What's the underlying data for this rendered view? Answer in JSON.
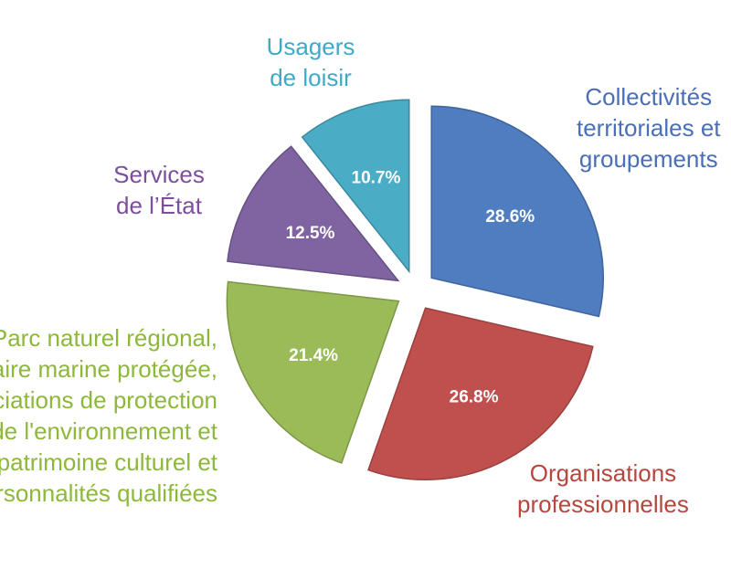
{
  "chart_data": {
    "type": "pie",
    "slices": [
      {
        "label": [
          "Collectivités",
          "territoriales et",
          "groupements"
        ],
        "value": 28.6,
        "value_label": "28.6%",
        "color": "#4F7DC0"
      },
      {
        "label": [
          "Organisations",
          "professionnelles"
        ],
        "value": 26.8,
        "value_label": "26.8%",
        "color": "#C0504D"
      },
      {
        "label": [
          "Parc naturel régional,",
          "aire marine protégée,",
          "associations de protection",
          "de l'environnement et",
          "du patrimoine culturel et",
          "personnalités qualifiées"
        ],
        "value": 21.4,
        "value_label": "21.4%",
        "color": "#9BBB59"
      },
      {
        "label": [
          "Services",
          "de l’État"
        ],
        "value": 12.5,
        "value_label": "12.5%",
        "color": "#8064A2"
      },
      {
        "label": [
          "Usagers",
          "de loisir"
        ],
        "value": 10.7,
        "value_label": "10.7%",
        "color": "#4BACC6"
      }
    ],
    "start": "12 o'clock",
    "direction": "clockwise",
    "legend": "none"
  }
}
